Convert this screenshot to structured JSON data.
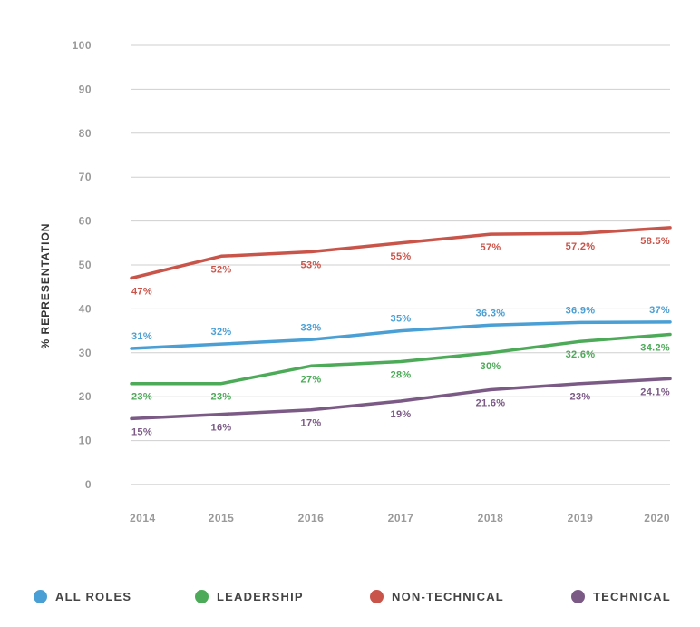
{
  "chart_data": {
    "type": "line",
    "title": "",
    "xlabel": "",
    "ylabel": "% REPRESENTATION",
    "ylim": [
      0,
      100
    ],
    "yticks": [
      "0",
      "10",
      "20",
      "30",
      "40",
      "50",
      "60",
      "70",
      "80",
      "90",
      "100"
    ],
    "categories": [
      "2014",
      "2015",
      "2016",
      "2017",
      "2018",
      "2019",
      "2020"
    ],
    "grid": true,
    "legend_position": "bottom",
    "series": [
      {
        "name": "ALL ROLES",
        "color": "#4a9fd4",
        "values": [
          31,
          32,
          33,
          35,
          36.3,
          36.9,
          37
        ],
        "labels": [
          "31%",
          "32%",
          "33%",
          "35%",
          "36.3%",
          "36.9%",
          "37%"
        ]
      },
      {
        "name": "LEADERSHIP",
        "color": "#4caa58",
        "values": [
          23,
          23,
          27,
          28,
          30,
          32.6,
          34.2
        ],
        "labels": [
          "23%",
          "23%",
          "27%",
          "28%",
          "30%",
          "32.6%",
          "34.2%"
        ]
      },
      {
        "name": "NON-TECHNICAL",
        "color": "#c9544a",
        "values": [
          47,
          52,
          53,
          55,
          57,
          57.2,
          58.5
        ],
        "labels": [
          "47%",
          "52%",
          "53%",
          "55%",
          "57%",
          "57.2%",
          "58.5%"
        ]
      },
      {
        "name": "TECHNICAL",
        "color": "#7b5a86",
        "values": [
          15,
          16,
          17,
          19,
          21.6,
          23,
          24.1
        ],
        "labels": [
          "15%",
          "16%",
          "17%",
          "19%",
          "21.6%",
          "23%",
          "24.1%"
        ]
      }
    ]
  }
}
